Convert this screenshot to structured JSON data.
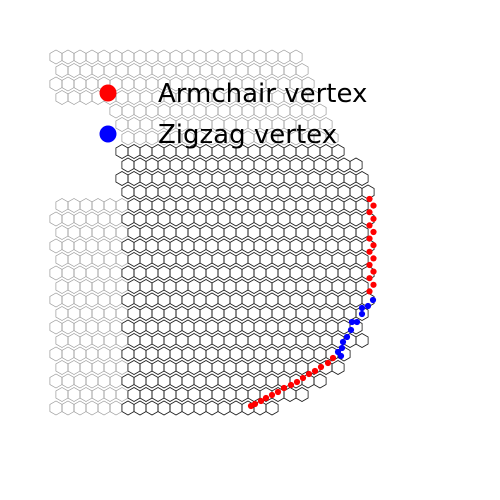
{
  "figure": {
    "description_text": "",
    "lattice": {
      "inner_stroke": "#1a1a1a",
      "outer_stroke": "#9a9a9a"
    }
  },
  "legend": {
    "items": [
      {
        "label": "Armchair vertex",
        "color": "#ff0000"
      },
      {
        "label": "Zigzag vertex",
        "color": "#0000ff"
      }
    ]
  },
  "chart_data": {
    "type": "scatter",
    "title": "",
    "series": [
      {
        "name": "Armchair vertex",
        "color": "#ff0000"
      },
      {
        "name": "Zigzag vertex",
        "color": "#0000ff"
      }
    ]
  }
}
